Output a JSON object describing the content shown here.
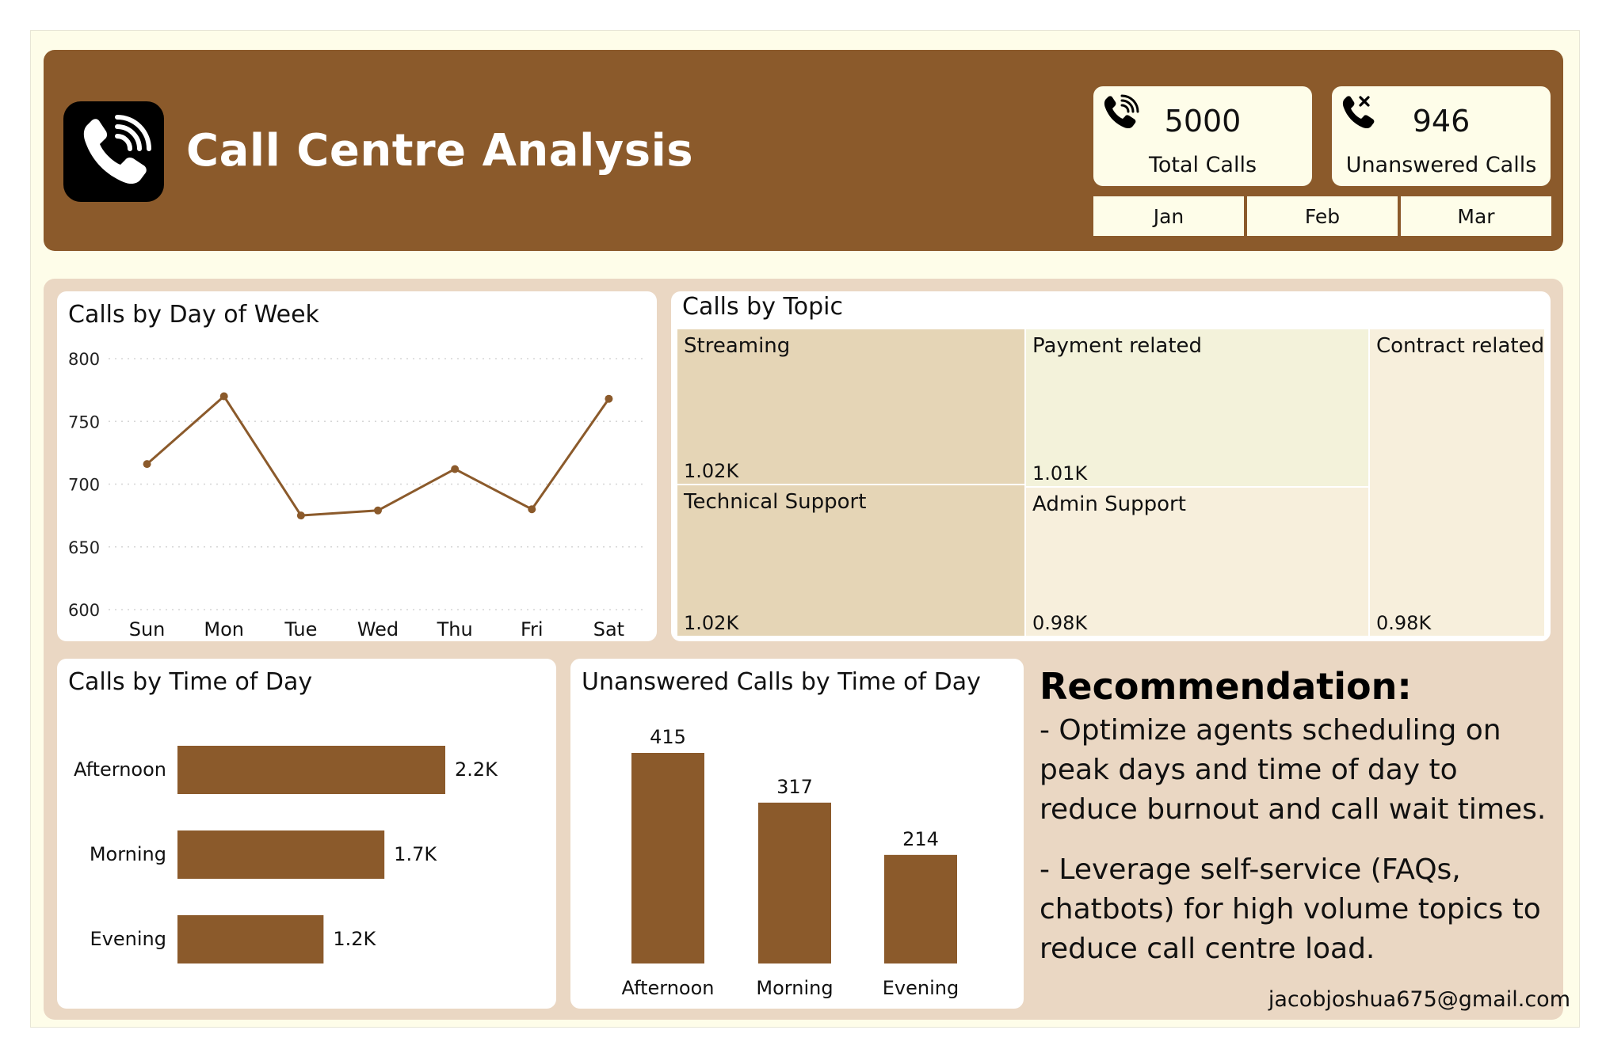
{
  "header": {
    "title": "Call Centre Analysis",
    "logo_icon": "phone-call-icon",
    "kpis": [
      {
        "value": "5000",
        "label": "Total Calls",
        "icon": "phone-ringing-icon"
      },
      {
        "value": "946",
        "label": "Unanswered Calls",
        "icon": "phone-missed-icon"
      }
    ],
    "months": [
      "Jan",
      "Feb",
      "Mar"
    ]
  },
  "colors": {
    "brand_brown": "#8b5a2b",
    "page_cream": "#fefde9",
    "panel_beige": "#ead7c3",
    "tile_dark": "#e5d5b6",
    "tile_light_green": "#f3f2da",
    "tile_pale": "#f7efdc"
  },
  "recommendation": {
    "title": "Recommendation:",
    "points": [
      "- Optimize agents scheduling on peak days and time of day to reduce burnout and call wait times.",
      "- Leverage self-service (FAQs, chatbots) for high volume topics to reduce call centre load."
    ]
  },
  "footer": {
    "email": "jacobjoshua675@gmail.com"
  },
  "chart_data": [
    {
      "id": "day",
      "type": "line",
      "title": "Calls by Day of Week",
      "categories": [
        "Sun",
        "Mon",
        "Tue",
        "Wed",
        "Thu",
        "Fri",
        "Sat"
      ],
      "values": [
        716,
        770,
        675,
        679,
        712,
        680,
        768
      ],
      "ylim": [
        600,
        800
      ],
      "yticks": [
        "800",
        "750",
        "700",
        "650",
        "600"
      ],
      "grid": true,
      "color": "#8b5a2b"
    },
    {
      "id": "topic",
      "type": "treemap",
      "title": "Calls by Topic",
      "tiles": [
        {
          "name": "Streaming",
          "value_label": "1.02K",
          "value": 1020,
          "color": "#e5d5b6"
        },
        {
          "name": "Technical Support",
          "value_label": "1.02K",
          "value": 1020,
          "color": "#e5d5b6"
        },
        {
          "name": "Payment related",
          "value_label": "1.01K",
          "value": 1010,
          "color": "#f3f2da"
        },
        {
          "name": "Admin Support",
          "value_label": "0.98K",
          "value": 980,
          "color": "#f7efdc"
        },
        {
          "name": "Contract related",
          "value_label": "0.98K",
          "value": 980,
          "color": "#f7efdc"
        }
      ]
    },
    {
      "id": "time",
      "type": "bar",
      "orientation": "horizontal",
      "title": "Calls by Time of Day",
      "categories": [
        "Afternoon",
        "Morning",
        "Evening"
      ],
      "values": [
        2200,
        1700,
        1200
      ],
      "value_labels": [
        "2.2K",
        "1.7K",
        "1.2K"
      ],
      "color": "#8b5a2b"
    },
    {
      "id": "unanswered",
      "type": "bar",
      "orientation": "vertical",
      "title": "Unanswered Calls by Time of Day",
      "categories": [
        "Afternoon",
        "Morning",
        "Evening"
      ],
      "values": [
        415,
        317,
        214
      ],
      "value_labels": [
        "415",
        "317",
        "214"
      ],
      "color": "#8b5a2b"
    }
  ]
}
